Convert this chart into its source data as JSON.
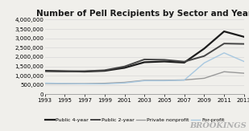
{
  "title": "Number of Pell Recipients by Sector and Year",
  "years": [
    1993,
    1995,
    1997,
    1999,
    2001,
    2003,
    2005,
    2007,
    2009,
    2011,
    2013
  ],
  "public_4year": [
    1260000,
    1240000,
    1220000,
    1260000,
    1420000,
    1720000,
    1760000,
    1700000,
    2450000,
    3370000,
    3080000
  ],
  "public_2year": [
    1240000,
    1220000,
    1240000,
    1290000,
    1490000,
    1870000,
    1850000,
    1750000,
    2050000,
    2720000,
    2700000
  ],
  "private_nonprofit": [
    580000,
    570000,
    570000,
    590000,
    640000,
    750000,
    750000,
    770000,
    860000,
    1210000,
    1130000
  ],
  "for_profit": [
    600000,
    580000,
    560000,
    560000,
    610000,
    730000,
    730000,
    760000,
    1680000,
    2220000,
    1760000
  ],
  "colors": {
    "public_4year": "#1c1c1c",
    "public_2year": "#444444",
    "private_nonprofit": "#999999",
    "for_profit": "#a8c8e0"
  },
  "linewidths": {
    "public_4year": 1.6,
    "public_2year": 1.4,
    "private_nonprofit": 1.0,
    "for_profit": 1.0
  },
  "linestyles": {
    "public_4year": "-",
    "public_2year": "-",
    "private_nonprofit": "-",
    "for_profit": "-"
  },
  "ylim": [
    0,
    4000000
  ],
  "xlim": [
    1993,
    2013
  ],
  "yticks": [
    0,
    500000,
    1000000,
    1500000,
    2000000,
    2500000,
    3000000,
    3500000,
    4000000
  ],
  "ytick_labels": [
    "0",
    "500,000",
    "1,000,000",
    "1,500,000",
    "2,000,000",
    "2,500,000",
    "3,000,000",
    "3,500,000",
    "4,000,000"
  ],
  "xticks": [
    1993,
    1995,
    1997,
    1999,
    2001,
    2003,
    2005,
    2007,
    2009,
    2011,
    2013
  ],
  "legend_labels": [
    "Public 4-year",
    "Public 2-year",
    "Private nonprofit",
    "For-profit"
  ],
  "bg_color": "#f0efeb",
  "plot_bg_color": "#f0efeb",
  "grid_color": "#d8d8d8",
  "brookings_text": "BROOKINGS",
  "title_fontsize": 7.5,
  "tick_fontsize": 5,
  "legend_fontsize": 4.5
}
